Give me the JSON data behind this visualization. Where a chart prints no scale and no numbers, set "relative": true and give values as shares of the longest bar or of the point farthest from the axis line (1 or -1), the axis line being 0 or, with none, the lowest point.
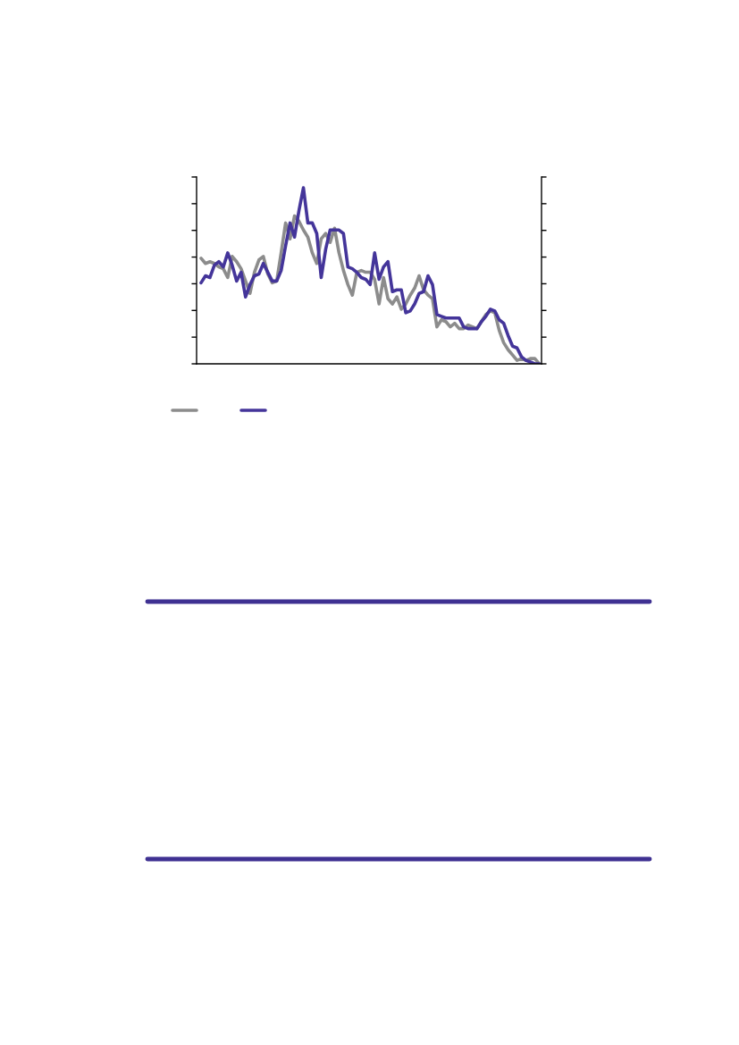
{
  "chart_data": {
    "type": "line",
    "relative": true,
    "grid": false,
    "marker": "none",
    "line_style": "solid",
    "categories": [
      null,
      null,
      null,
      null,
      null,
      null,
      null,
      null,
      null,
      null,
      null,
      null,
      null,
      null,
      null,
      null,
      null,
      null,
      null,
      null,
      null,
      null,
      null,
      null,
      null,
      null,
      null,
      null,
      null,
      null,
      null,
      null,
      null,
      null,
      null,
      null,
      null,
      null,
      null,
      null,
      null,
      null,
      null,
      null,
      null,
      null,
      null,
      null,
      null,
      null,
      null,
      null,
      null,
      null,
      null,
      null,
      null,
      null,
      null,
      null,
      null,
      null,
      null,
      null,
      null,
      null,
      null,
      null,
      null,
      null,
      null,
      null,
      null,
      null,
      null,
      null,
      null
    ],
    "series": [
      {
        "color": "#8c8c8c",
        "values": [
          0.6,
          0.57,
          0.58,
          0.57,
          0.55,
          0.54,
          0.49,
          0.61,
          0.58,
          0.54,
          0.47,
          0.4,
          0.52,
          0.59,
          0.61,
          0.51,
          0.46,
          0.47,
          0.63,
          0.8,
          0.71,
          0.84,
          0.81,
          0.76,
          0.72,
          0.63,
          0.57,
          0.71,
          0.74,
          0.69,
          0.77,
          0.63,
          0.53,
          0.45,
          0.39,
          0.52,
          0.53,
          0.52,
          0.52,
          0.48,
          0.34,
          0.49,
          0.37,
          0.34,
          0.38,
          0.31,
          0.34,
          0.39,
          0.43,
          0.5,
          0.42,
          0.39,
          0.37,
          0.21,
          0.25,
          0.24,
          0.21,
          0.23,
          0.2,
          0.2,
          0.22,
          0.21,
          0.2,
          0.24,
          0.28,
          0.3,
          0.29,
          0.19,
          0.12,
          0.08,
          0.05,
          0.02,
          0.03,
          0.02,
          0.03,
          0.03,
          0
        ]
      },
      {
        "color": "#44359a",
        "values": [
          0.46,
          0.5,
          0.49,
          0.56,
          0.58,
          0.55,
          0.63,
          0.56,
          0.47,
          0.52,
          0.38,
          0.45,
          0.5,
          0.51,
          0.57,
          0.52,
          0.47,
          0.47,
          0.53,
          0.67,
          0.8,
          0.72,
          0.87,
          1.0,
          0.8,
          0.8,
          0.74,
          0.49,
          0.65,
          0.76,
          0.76,
          0.76,
          0.74,
          0.55,
          0.54,
          0.52,
          0.49,
          0.48,
          0.45,
          0.63,
          0.48,
          0.55,
          0.58,
          0.41,
          0.42,
          0.42,
          0.29,
          0.3,
          0.34,
          0.4,
          0.41,
          0.5,
          0.45,
          0.28,
          0.27,
          0.26,
          0.26,
          0.26,
          0.26,
          0.21,
          0.2,
          0.2,
          0.2,
          0.24,
          0.27,
          0.31,
          0.3,
          0.25,
          0.23,
          0.16,
          0.1,
          0.09,
          0.04,
          0.02,
          0.01,
          0,
          0
        ]
      }
    ]
  }
}
